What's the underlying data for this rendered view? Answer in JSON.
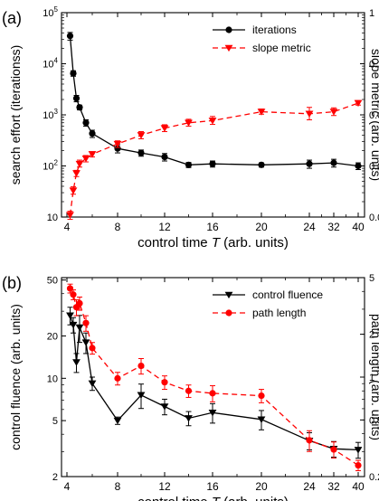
{
  "chart_data": [
    {
      "panel_label": "(a)",
      "type": "line",
      "xlabel": "control time T (arb. units)",
      "xlabel_italic_part": "T",
      "x_tick_labels": [
        "4",
        "8",
        "12",
        "16",
        "20",
        "24",
        "32",
        "40"
      ],
      "x_tick_values": [
        4,
        8,
        12,
        16,
        20,
        24,
        32,
        40
      ],
      "xlim": [
        3.3,
        40.8
      ],
      "x_scale_note": "compressed beyond 24",
      "ylabel_left": "search effort (iterationss)",
      "ylabel_right": "slope metric (arb. units)",
      "left_scale": "log",
      "right_scale": "log",
      "left_ylim": [
        10,
        100000
      ],
      "right_ylim": [
        0.0001,
        1
      ],
      "left_tick_labels": [
        "10",
        "10^2",
        "10^3",
        "10^4",
        "10^5"
      ],
      "right_tick_labels": [
        "0.0001",
        "0.001",
        "0.01",
        "0.1",
        "1"
      ],
      "legend_position": "top-right",
      "grid": false,
      "series": [
        {
          "name": "iterations",
          "axis": "left",
          "color": "#000000",
          "marker": "circle",
          "line": "solid",
          "x": [
            4.25,
            4.5,
            4.75,
            5,
            5.5,
            6,
            8,
            10,
            12,
            14,
            16,
            20,
            24,
            32,
            40
          ],
          "y": [
            35000,
            6500,
            2100,
            1400,
            700,
            430,
            220,
            180,
            150,
            105,
            110,
            105,
            110,
            115,
            100
          ],
          "err": [
            6000,
            800,
            300,
            150,
            100,
            70,
            40,
            25,
            25,
            12,
            15,
            10,
            20,
            20,
            15
          ]
        },
        {
          "name": "slope metric",
          "axis": "right",
          "color": "#ff0000",
          "marker": "triangle-down",
          "line": "dashed",
          "x": [
            4.25,
            4.5,
            4.75,
            5,
            5.5,
            6,
            8,
            10,
            12,
            14,
            16,
            20,
            24,
            32,
            40
          ],
          "y": [
            0.00011,
            0.00033,
            0.00072,
            0.0011,
            0.0014,
            0.0017,
            0.0027,
            0.004,
            0.0055,
            0.007,
            0.0077,
            0.0115,
            0.0105,
            0.0115,
            0.017
          ],
          "err_up": [
            2e-05,
            6e-05,
            0.0001,
            0.0002,
            0.0002,
            0.0002,
            0.0004,
            0.0007,
            0.0009,
            0.0012,
            0.0016,
            0.0015,
            0.0035,
            0.0022,
            0.002
          ],
          "err_down": [
            2e-05,
            5e-05,
            0.0001,
            0.00015,
            0.0002,
            0.0002,
            0.0004,
            0.0006,
            0.0008,
            0.001,
            0.0012,
            0.0012,
            0.0025,
            0.0018,
            0.0015
          ]
        }
      ]
    },
    {
      "panel_label": "(b)",
      "type": "line",
      "xlabel": "control time T (arb. units)",
      "xlabel_italic_part": "T",
      "x_tick_labels": [
        "4",
        "8",
        "12",
        "16",
        "20",
        "24",
        "32",
        "40"
      ],
      "x_tick_values": [
        4,
        8,
        12,
        16,
        20,
        24,
        32,
        40
      ],
      "xlim": [
        3.3,
        40.8
      ],
      "ylabel_left": "control fluence (arb. units)",
      "ylabel_right": "path length (arb. units)",
      "left_scale": "log",
      "right_scale": "log",
      "left_ylim": [
        2,
        52
      ],
      "right_ylim": [
        0.2,
        5
      ],
      "left_tick_labels": [
        "2",
        "5",
        "10",
        "20",
        "50"
      ],
      "left_tick_values": [
        2,
        5,
        10,
        20,
        50
      ],
      "right_tick_labels": [
        "0.2",
        "0.5",
        "1",
        "2",
        "5"
      ],
      "right_tick_values": [
        0.2,
        0.5,
        1,
        2,
        5
      ],
      "legend_position": "top-right",
      "grid": false,
      "series": [
        {
          "name": "control fluence",
          "axis": "left",
          "color": "#000000",
          "marker": "triangle-down",
          "line": "solid",
          "x": [
            4.25,
            4.5,
            4.75,
            5,
            5.5,
            6,
            8,
            10,
            12,
            14,
            16,
            20,
            24,
            32,
            40
          ],
          "y": [
            28,
            24,
            13,
            23,
            18,
            9.2,
            5,
            7.6,
            6.3,
            5.2,
            5.7,
            5.1,
            3.6,
            3.15,
            3.1
          ],
          "err": [
            4,
            3,
            2,
            5,
            3,
            1,
            0.3,
            1.5,
            0.8,
            0.6,
            0.9,
            0.8,
            0.5,
            0.4,
            0.4
          ]
        },
        {
          "name": "path length",
          "axis": "right",
          "color": "#ff0000",
          "marker": "circle",
          "line": "dashed",
          "x": [
            4.25,
            4.5,
            4.75,
            5,
            5.5,
            6,
            8,
            10,
            12,
            14,
            16,
            20,
            24,
            32,
            40
          ],
          "y": [
            4.2,
            3.8,
            3.1,
            3.3,
            2.4,
            1.6,
            0.98,
            1.2,
            0.92,
            0.8,
            0.77,
            0.74,
            0.36,
            0.31,
            0.24
          ],
          "err": [
            0.3,
            0.3,
            0.4,
            0.35,
            0.3,
            0.15,
            0.1,
            0.15,
            0.1,
            0.08,
            0.1,
            0.08,
            0.06,
            0.04,
            0.02
          ]
        }
      ]
    }
  ]
}
